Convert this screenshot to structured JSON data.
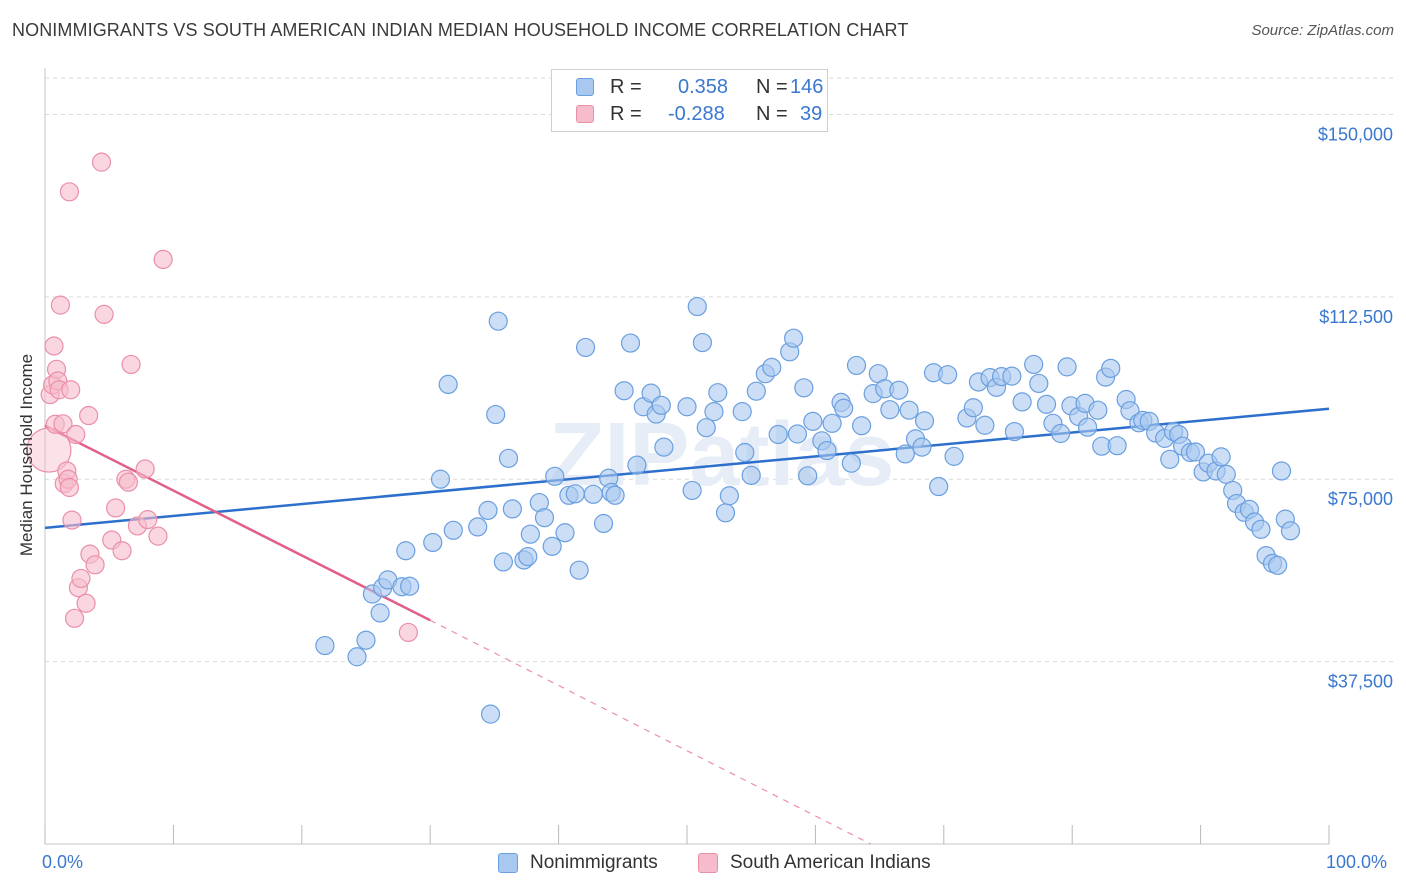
{
  "header": {
    "title": "NONIMMIGRANTS VS SOUTH AMERICAN INDIAN MEDIAN HOUSEHOLD INCOME CORRELATION CHART",
    "source": "Source: ZipAtlas.com"
  },
  "legend": {
    "rows": [
      {
        "r_label": "R =",
        "r_value": "0.358",
        "n_label": "N =",
        "n_value": "146",
        "color": "#a9c8ef"
      },
      {
        "r_label": "R =",
        "r_value": "-0.288",
        "n_label": "N =",
        "n_value": "39",
        "color": "#f6bccb"
      }
    ]
  },
  "bottom_legend": [
    {
      "label": "Nonimmigrants",
      "color": "#a9c8ef"
    },
    {
      "label": "South American Indians",
      "color": "#f6bccb"
    }
  ],
  "colors": {
    "blue_fill": "#a9c8ef",
    "blue_stroke": "#6a9fe0",
    "blue_line": "#2d6fcc",
    "pink_fill": "#f6bccb",
    "pink_stroke": "#ea8fa8",
    "pink_line": "#e0608a",
    "axis_text": "#3a78d0",
    "grid": "#d9d9d9",
    "watermark": "#e6edf6"
  },
  "chart_data": {
    "type": "scatter",
    "title": "NONIMMIGRANTS VS SOUTH AMERICAN INDIAN MEDIAN HOUSEHOLD INCOME CORRELATION CHART",
    "xlabel": "",
    "ylabel": "Median Household Income",
    "xlim": [
      0,
      100
    ],
    "ylim": [
      0,
      157500
    ],
    "x_tick_labels": {
      "min": "0.0%",
      "max": "100.0%"
    },
    "y_ticks": [
      {
        "value": 37500,
        "label": "$37,500"
      },
      {
        "value": 75000,
        "label": "$75,000"
      },
      {
        "value": 112500,
        "label": "$112,500"
      },
      {
        "value": 150000,
        "label": "$150,000"
      }
    ],
    "watermark": "ZIPatlas",
    "series": [
      {
        "name": "Nonimmigrants",
        "r": 0.358,
        "n": 146,
        "trend": {
          "x0": 0,
          "y0": 65000,
          "x1": 100,
          "y1": 89500
        },
        "points": [
          [
            21.8,
            40800
          ],
          [
            24.3,
            38500
          ],
          [
            25.0,
            41900
          ],
          [
            25.5,
            51400
          ],
          [
            26.1,
            47500
          ],
          [
            26.3,
            52700
          ],
          [
            26.7,
            54300
          ],
          [
            27.8,
            52900
          ],
          [
            28.4,
            53000
          ],
          [
            28.1,
            60300
          ],
          [
            30.2,
            62000
          ],
          [
            30.8,
            75000
          ],
          [
            31.4,
            94500
          ],
          [
            31.8,
            64500
          ],
          [
            33.7,
            65200
          ],
          [
            34.5,
            68600
          ],
          [
            34.7,
            26700
          ],
          [
            35.1,
            88300
          ],
          [
            35.3,
            107500
          ],
          [
            35.7,
            58000
          ],
          [
            36.1,
            79300
          ],
          [
            36.4,
            68900
          ],
          [
            37.3,
            58400
          ],
          [
            37.8,
            63700
          ],
          [
            37.6,
            59100
          ],
          [
            38.5,
            70200
          ],
          [
            38.9,
            67100
          ],
          [
            39.5,
            61200
          ],
          [
            39.7,
            75600
          ],
          [
            40.5,
            64000
          ],
          [
            40.8,
            71700
          ],
          [
            41.3,
            72000
          ],
          [
            41.6,
            56300
          ],
          [
            42.1,
            102100
          ],
          [
            42.7,
            71900
          ],
          [
            43.5,
            65900
          ],
          [
            43.9,
            75200
          ],
          [
            44.1,
            72300
          ],
          [
            44.4,
            71700
          ],
          [
            45.1,
            93200
          ],
          [
            45.6,
            103000
          ],
          [
            46.1,
            77900
          ],
          [
            46.6,
            89900
          ],
          [
            47.2,
            92700
          ],
          [
            47.6,
            88400
          ],
          [
            48.0,
            90200
          ],
          [
            48.2,
            81600
          ],
          [
            50.0,
            89900
          ],
          [
            50.4,
            72700
          ],
          [
            50.8,
            110500
          ],
          [
            51.2,
            103100
          ],
          [
            51.5,
            85600
          ],
          [
            52.1,
            88900
          ],
          [
            52.4,
            92800
          ],
          [
            53.0,
            68100
          ],
          [
            53.3,
            71600
          ],
          [
            54.3,
            88900
          ],
          [
            54.5,
            80500
          ],
          [
            55.0,
            75800
          ],
          [
            55.4,
            93100
          ],
          [
            56.1,
            96700
          ],
          [
            56.6,
            98000
          ],
          [
            57.1,
            84200
          ],
          [
            58.0,
            101200
          ],
          [
            58.3,
            104000
          ],
          [
            58.6,
            84300
          ],
          [
            59.1,
            93800
          ],
          [
            59.4,
            75700
          ],
          [
            59.8,
            86900
          ],
          [
            60.5,
            82900
          ],
          [
            60.9,
            80900
          ],
          [
            61.3,
            86500
          ],
          [
            62.0,
            90800
          ],
          [
            62.2,
            89600
          ],
          [
            62.8,
            78300
          ],
          [
            63.2,
            98400
          ],
          [
            63.6,
            86000
          ],
          [
            64.5,
            92600
          ],
          [
            64.9,
            96700
          ],
          [
            65.4,
            93600
          ],
          [
            65.8,
            89300
          ],
          [
            66.5,
            93300
          ],
          [
            67.0,
            80200
          ],
          [
            67.3,
            89200
          ],
          [
            67.8,
            83300
          ],
          [
            68.3,
            81600
          ],
          [
            68.5,
            87000
          ],
          [
            69.2,
            96900
          ],
          [
            69.6,
            73500
          ],
          [
            70.3,
            96500
          ],
          [
            70.8,
            79700
          ],
          [
            71.8,
            87600
          ],
          [
            72.3,
            89700
          ],
          [
            72.7,
            95000
          ],
          [
            73.2,
            86100
          ],
          [
            73.6,
            95900
          ],
          [
            74.1,
            93900
          ],
          [
            74.5,
            96100
          ],
          [
            75.3,
            96200
          ],
          [
            75.5,
            84800
          ],
          [
            76.1,
            90900
          ],
          [
            77.0,
            98600
          ],
          [
            77.4,
            94700
          ],
          [
            78.0,
            90400
          ],
          [
            78.5,
            86500
          ],
          [
            79.1,
            84400
          ],
          [
            79.6,
            98100
          ],
          [
            79.9,
            90100
          ],
          [
            80.5,
            87900
          ],
          [
            81.0,
            90600
          ],
          [
            81.2,
            85700
          ],
          [
            82.0,
            89200
          ],
          [
            82.3,
            81800
          ],
          [
            82.6,
            96000
          ],
          [
            83.0,
            97800
          ],
          [
            83.5,
            81900
          ],
          [
            84.2,
            91400
          ],
          [
            84.5,
            89100
          ],
          [
            85.2,
            86600
          ],
          [
            85.5,
            87100
          ],
          [
            86.0,
            86900
          ],
          [
            86.5,
            84500
          ],
          [
            87.2,
            83400
          ],
          [
            87.6,
            79100
          ],
          [
            87.9,
            84800
          ],
          [
            88.3,
            84200
          ],
          [
            88.6,
            81800
          ],
          [
            89.2,
            80500
          ],
          [
            89.6,
            80600
          ],
          [
            90.2,
            76500
          ],
          [
            90.6,
            78300
          ],
          [
            91.2,
            76700
          ],
          [
            91.6,
            79600
          ],
          [
            92.0,
            76000
          ],
          [
            92.5,
            72700
          ],
          [
            92.8,
            70000
          ],
          [
            93.4,
            68200
          ],
          [
            93.8,
            68800
          ],
          [
            94.2,
            66200
          ],
          [
            94.7,
            64700
          ],
          [
            95.1,
            59300
          ],
          [
            95.6,
            57700
          ],
          [
            96.0,
            57300
          ],
          [
            96.3,
            76700
          ],
          [
            96.6,
            66800
          ],
          [
            97.0,
            64400
          ]
        ]
      },
      {
        "name": "South American Indians",
        "r": -0.288,
        "n": 39,
        "trend": {
          "x0": 0,
          "y0": 86000,
          "x1": 30.0,
          "y1": 46000,
          "dash_x1": 64.3,
          "dash_y1": 0
        },
        "points": [
          [
            0.3,
            81000
          ],
          [
            0.4,
            92400
          ],
          [
            0.6,
            94400
          ],
          [
            0.7,
            102400
          ],
          [
            0.8,
            86300
          ],
          [
            0.9,
            97600
          ],
          [
            1.0,
            95200
          ],
          [
            1.1,
            93400
          ],
          [
            1.2,
            110800
          ],
          [
            1.4,
            86400
          ],
          [
            1.5,
            74100
          ],
          [
            1.7,
            76700
          ],
          [
            1.8,
            75000
          ],
          [
            1.9,
            73300
          ],
          [
            2.0,
            93400
          ],
          [
            2.1,
            66600
          ],
          [
            2.3,
            46400
          ],
          [
            2.4,
            84200
          ],
          [
            2.6,
            52700
          ],
          [
            2.8,
            54600
          ],
          [
            3.2,
            49500
          ],
          [
            3.4,
            88100
          ],
          [
            3.5,
            59600
          ],
          [
            3.9,
            57400
          ],
          [
            4.4,
            140200
          ],
          [
            4.6,
            108900
          ],
          [
            5.2,
            62500
          ],
          [
            5.5,
            69100
          ],
          [
            6.0,
            60300
          ],
          [
            6.3,
            75000
          ],
          [
            6.5,
            74400
          ],
          [
            6.7,
            98600
          ],
          [
            7.2,
            65400
          ],
          [
            7.8,
            77100
          ],
          [
            8.0,
            66700
          ],
          [
            8.8,
            63300
          ],
          [
            9.2,
            120200
          ],
          [
            1.9,
            134100
          ],
          [
            28.3,
            43500
          ]
        ]
      }
    ]
  }
}
